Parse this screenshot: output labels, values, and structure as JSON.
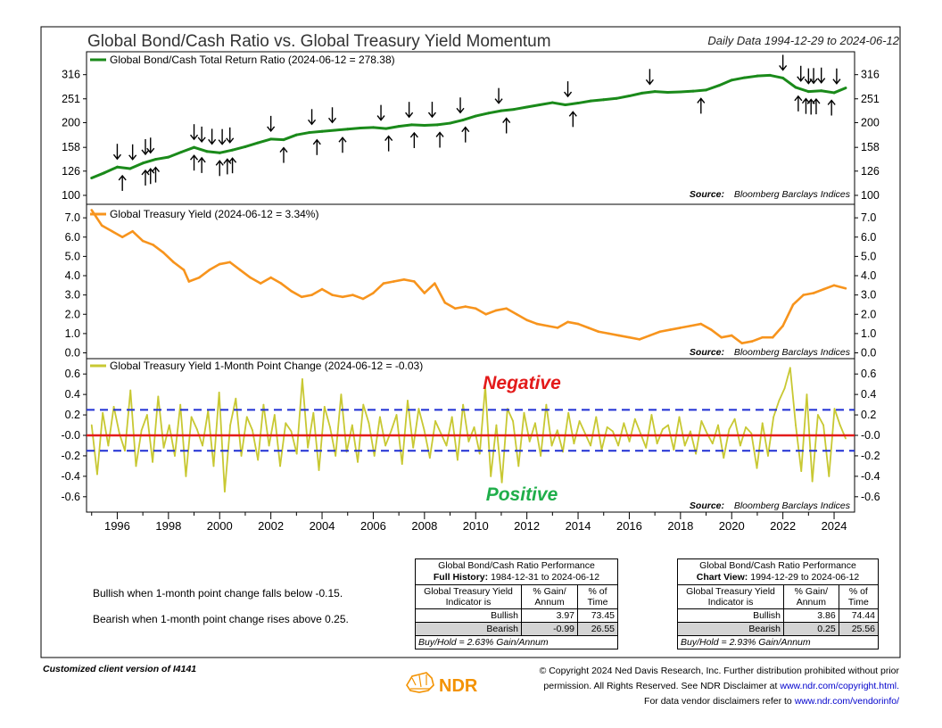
{
  "header": {
    "title": "Global Bond/Cash Ratio vs. Global Treasury Yield Momentum",
    "daily": "Daily Data 1994-12-29 to 2024-06-12"
  },
  "colors": {
    "green": "#1a8a1a",
    "orange": "#f7941d",
    "olive": "#c8c832",
    "red": "#e31b1b",
    "blue": "#1f2fd4",
    "negative": "#e31b1b",
    "positive": "#1fae4a"
  },
  "chart_data": [
    {
      "type": "line",
      "legend": "Global Bond/Cash Total Return Ratio (2024-06-12 = 278.38)",
      "source_label": "Source:",
      "source_text": "Bloomberg Barclays Indices",
      "scale": "log",
      "ylim": [
        95,
        380
      ],
      "yticks": [
        "316",
        "251",
        "200",
        "158",
        "126",
        "100"
      ],
      "x": [
        1995.0,
        1995.5,
        1996.0,
        1996.5,
        1997.0,
        1997.5,
        1998.0,
        1998.5,
        1999.0,
        1999.5,
        2000.0,
        2000.5,
        2001.0,
        2001.5,
        2002.0,
        2002.5,
        2003.0,
        2003.5,
        2004.0,
        2004.5,
        2005.0,
        2005.5,
        2006.0,
        2006.5,
        2007.0,
        2007.5,
        2008.0,
        2008.5,
        2009.0,
        2009.5,
        2010.0,
        2010.5,
        2011.0,
        2011.5,
        2012.0,
        2012.5,
        2013.0,
        2013.5,
        2014.0,
        2014.5,
        2015.0,
        2015.5,
        2016.0,
        2016.5,
        2017.0,
        2017.5,
        2018.0,
        2018.5,
        2019.0,
        2019.5,
        2020.0,
        2020.5,
        2021.0,
        2021.5,
        2022.0,
        2022.5,
        2023.0,
        2023.5,
        2024.0,
        2024.45
      ],
      "values": [
        118,
        124,
        131,
        129,
        136,
        141,
        144,
        151,
        158,
        152,
        150,
        154,
        159,
        165,
        171,
        170,
        178,
        182,
        184,
        186,
        188,
        190,
        191,
        189,
        193,
        196,
        195,
        196,
        199,
        205,
        213,
        219,
        224,
        227,
        232,
        237,
        242,
        237,
        241,
        246,
        249,
        252,
        258,
        265,
        269,
        267,
        268,
        270,
        273,
        285,
        300,
        307,
        312,
        314,
        306,
        280,
        269,
        271,
        266,
        278.38
      ],
      "sell_arrows": [
        1996.0,
        1996.6,
        1997.1,
        1997.3,
        1999.0,
        1999.3,
        1999.7,
        2000.1,
        2000.4,
        2002.0,
        2003.6,
        2004.4,
        2006.3,
        2007.4,
        2008.3,
        2009.4,
        2010.9,
        2013.6,
        2016.8,
        2022.0,
        2022.7,
        2023.0,
        2023.2,
        2023.5,
        2024.1
      ],
      "buy_arrows": [
        1996.2,
        1997.1,
        1997.3,
        1997.5,
        1999.0,
        1999.3,
        2000.0,
        2000.3,
        2000.5,
        2002.5,
        2003.8,
        2004.8,
        2006.6,
        2007.6,
        2008.6,
        2009.6,
        2011.2,
        2013.8,
        2018.8,
        2022.6,
        2022.9,
        2023.1,
        2023.3,
        2023.9
      ]
    },
    {
      "type": "line",
      "legend": "Global Treasury Yield (2024-06-12 = 3.34%)",
      "source_label": "Source:",
      "source_text": "Bloomberg Barclays Indices",
      "ylim": [
        -0.3,
        7.7
      ],
      "yticks": [
        "7.0",
        "6.0",
        "5.0",
        "4.0",
        "3.0",
        "2.0",
        "1.0",
        "0.0"
      ],
      "x": [
        1995.0,
        1995.4,
        1995.8,
        1996.2,
        1996.6,
        1997.0,
        1997.4,
        1997.8,
        1998.2,
        1998.6,
        1998.8,
        1999.2,
        1999.6,
        2000.0,
        2000.4,
        2000.8,
        2001.2,
        2001.6,
        2002.0,
        2002.4,
        2002.8,
        2003.2,
        2003.6,
        2004.0,
        2004.4,
        2004.8,
        2005.2,
        2005.6,
        2006.0,
        2006.4,
        2006.8,
        2007.2,
        2007.6,
        2008.0,
        2008.4,
        2008.8,
        2009.2,
        2009.6,
        2010.0,
        2010.4,
        2010.8,
        2011.2,
        2011.6,
        2012.0,
        2012.4,
        2012.8,
        2013.2,
        2013.6,
        2014.0,
        2014.4,
        2014.8,
        2015.2,
        2015.6,
        2016.0,
        2016.4,
        2016.8,
        2017.2,
        2017.6,
        2018.0,
        2018.4,
        2018.8,
        2019.2,
        2019.6,
        2020.0,
        2020.4,
        2020.8,
        2021.2,
        2021.6,
        2022.0,
        2022.4,
        2022.8,
        2023.2,
        2023.6,
        2024.0,
        2024.45
      ],
      "values": [
        7.4,
        6.6,
        6.3,
        6.0,
        6.3,
        5.8,
        5.6,
        5.2,
        4.7,
        4.3,
        3.7,
        3.9,
        4.3,
        4.6,
        4.7,
        4.3,
        3.9,
        3.6,
        3.9,
        3.6,
        3.2,
        2.9,
        3.0,
        3.3,
        3.0,
        2.9,
        3.0,
        2.8,
        3.1,
        3.6,
        3.7,
        3.8,
        3.7,
        3.1,
        3.6,
        2.6,
        2.3,
        2.4,
        2.3,
        2.0,
        2.2,
        2.3,
        2.0,
        1.7,
        1.5,
        1.4,
        1.3,
        1.6,
        1.5,
        1.3,
        1.1,
        1.0,
        0.9,
        0.8,
        0.7,
        0.9,
        1.1,
        1.2,
        1.3,
        1.4,
        1.5,
        1.2,
        0.8,
        0.9,
        0.5,
        0.6,
        0.8,
        0.8,
        1.4,
        2.5,
        3.0,
        3.1,
        3.3,
        3.5,
        3.34
      ]
    },
    {
      "type": "line",
      "legend": "Global Treasury Yield 1-Month Point Change (2024-06-12 = -0.03)",
      "source_label": "Source:",
      "source_text": "Bloomberg Barclays Indices",
      "ylim": [
        -0.75,
        0.75
      ],
      "yticks": [
        "0.6",
        "0.4",
        "0.2",
        "-0.0",
        "-0.2",
        "-0.4",
        "-0.6"
      ],
      "upper_threshold": 0.25,
      "lower_threshold": -0.15,
      "negative_label": "Negative",
      "positive_label": "Positive",
      "x_start": 1995.0,
      "x_end": 2024.45,
      "values": [
        0.1,
        -0.38,
        0.22,
        -0.1,
        0.28,
        0.02,
        -0.15,
        0.44,
        -0.3,
        0.05,
        0.2,
        -0.26,
        0.38,
        -0.12,
        0.1,
        -0.2,
        0.3,
        -0.4,
        0.18,
        0.06,
        -0.1,
        0.24,
        -0.3,
        0.42,
        -0.55,
        0.1,
        0.36,
        -0.2,
        0.18,
        0.05,
        -0.24,
        0.3,
        -0.1,
        0.2,
        -0.3,
        0.12,
        0.04,
        -0.18,
        0.55,
        -0.12,
        0.22,
        -0.34,
        0.28,
        0.08,
        -0.2,
        0.4,
        -0.16,
        0.1,
        -0.26,
        0.3,
        0.12,
        -0.2,
        0.18,
        -0.1,
        0.04,
        0.2,
        -0.28,
        0.34,
        -0.12,
        0.26,
        0.05,
        -0.22,
        0.14,
        0.02,
        -0.1,
        0.18,
        -0.24,
        0.3,
        -0.06,
        0.08,
        -0.18,
        0.48,
        -0.4,
        0.1,
        -0.46,
        0.26,
        0.14,
        -0.3,
        0.22,
        -0.06,
        0.12,
        -0.2,
        0.3,
        -0.1,
        0.05,
        -0.16,
        0.22,
        -0.08,
        0.14,
        0.02,
        -0.1,
        0.18,
        -0.14,
        0.08,
        0.04,
        -0.1,
        0.12,
        -0.06,
        0.16,
        0.02,
        -0.12,
        0.2,
        -0.08,
        0.06,
        0.1,
        -0.14,
        0.18,
        -0.1,
        0.04,
        -0.18,
        0.14,
        0.02,
        -0.08,
        0.1,
        -0.22,
        0.06,
        0.16,
        -0.1,
        0.08,
        0.02,
        -0.32,
        0.12,
        -0.2,
        0.18,
        0.34,
        0.46,
        0.66,
        0.1,
        -0.35,
        0.4,
        -0.45,
        0.2,
        0.1,
        -0.4,
        0.26,
        0.1,
        -0.03
      ]
    }
  ],
  "xaxis": {
    "ticks": [
      "1996",
      "1998",
      "2000",
      "2002",
      "2004",
      "2006",
      "2008",
      "2010",
      "2012",
      "2014",
      "2016",
      "2018",
      "2020",
      "2022",
      "2024"
    ]
  },
  "notes": {
    "bullish": "Bullish when 1-month point change falls below -0.15.",
    "bearish": "Bearish when 1-month point change rises above 0.25."
  },
  "table_full": {
    "title": "Global Bond/Cash Ratio Performance",
    "subtitle_bold": "Full History:",
    "subtitle_rest": "1984-12-31 to 2024-06-12",
    "col1": "Global Treasury Yield Indicator is",
    "col2": "% Gain/ Annum",
    "col3": "% of Time",
    "rows": [
      {
        "label": "Bullish",
        "gain": "3.97",
        "time": "73.45"
      },
      {
        "label": "Bearish",
        "gain": "-0.99",
        "time": "26.55"
      }
    ],
    "footer": "Buy/Hold = 2.63% Gain/Annum"
  },
  "table_chart": {
    "title": "Global Bond/Cash Ratio Performance",
    "subtitle_bold": "Chart View:",
    "subtitle_rest": "1994-12-29 to 2024-06-12",
    "col1": "Global Treasury Yield Indicator is",
    "col2": "% Gain/ Annum",
    "col3": "% of Time",
    "rows": [
      {
        "label": "Bullish",
        "gain": "3.86",
        "time": "74.44"
      },
      {
        "label": "Bearish",
        "gain": "0.25",
        "time": "25.56"
      }
    ],
    "footer": "Buy/Hold = 2.93% Gain/Annum"
  },
  "footer": {
    "left": "Customized client version of I4141",
    "logo": "NDR",
    "line1": "© Copyright 2024 Ned Davis Research, Inc. Further distribution prohibited without prior",
    "line2a": "permission. All Rights Reserved. See NDR Disclaimer at",
    "link1": "www.ndr.com/copyright.html.",
    "line3a": "For data vendor disclaimers refer to",
    "link2": "www.ndr.com/vendorinfo/"
  }
}
